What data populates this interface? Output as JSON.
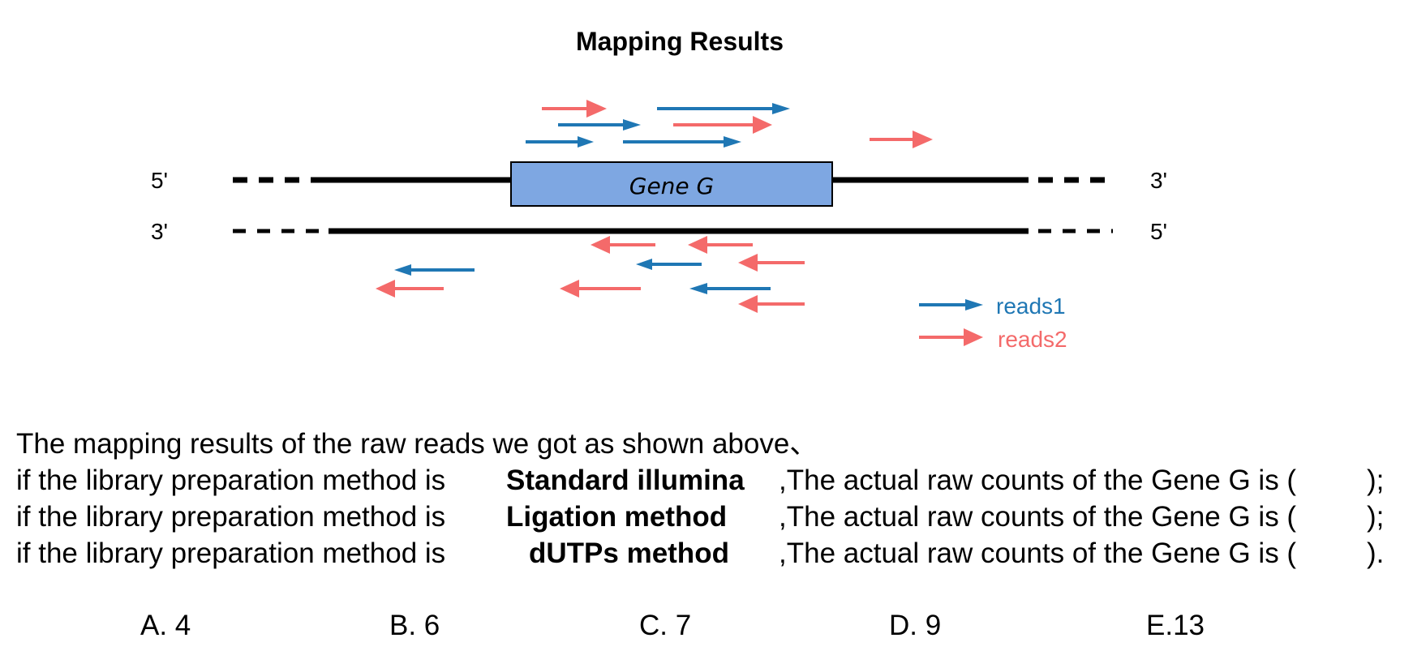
{
  "diagram": {
    "title": "Mapping  Results",
    "gene_label": "Gene G",
    "strand_top": {
      "left": "5'",
      "right": "3'"
    },
    "strand_bottom": {
      "left": "3'",
      "right": "5'"
    },
    "legend": {
      "reads1": "reads1",
      "reads2": "reads2"
    },
    "colors": {
      "reads1": "#1f77b4",
      "reads2": "#f46a6a",
      "gene_fill": "#7ea7e2",
      "line": "#000000"
    }
  },
  "question": {
    "intro": "The mapping results of  the raw reads we got as shown above、",
    "lines": [
      {
        "prefix": "if the library preparation method is",
        "method": "Standard illumina",
        "suffix": ",The actual raw counts of the Gene G is (",
        "end": ");"
      },
      {
        "prefix": "if the library preparation method is",
        "method": "Ligation method",
        "suffix": ",The actual raw counts of the Gene G is (",
        "end": ");"
      },
      {
        "prefix": "if the library preparation method is",
        "method": "dUTPs method",
        "suffix": ",The actual raw counts of the Gene G is (",
        "end": ")."
      }
    ]
  },
  "options": [
    "A. 4",
    "B. 6",
    "C. 7",
    "D. 9",
    "E.13"
  ]
}
